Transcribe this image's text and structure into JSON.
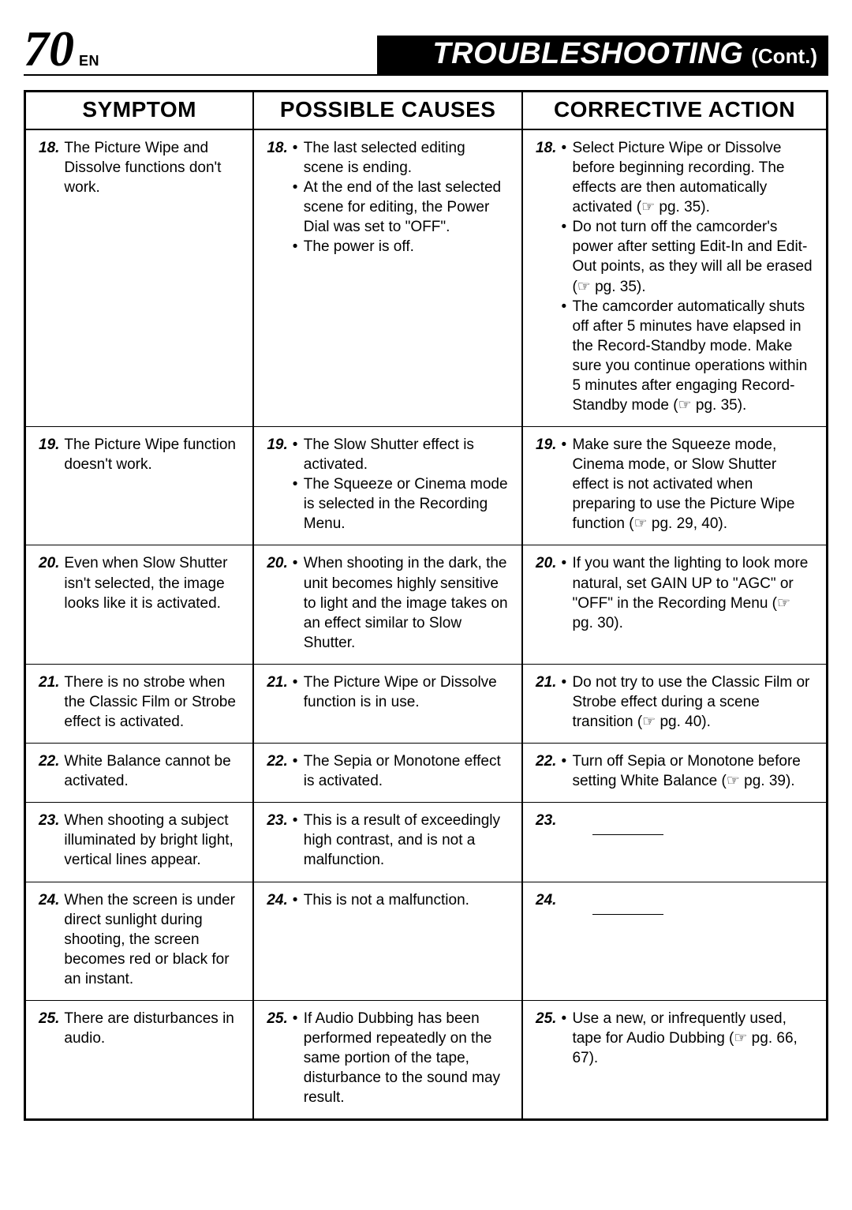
{
  "page": {
    "number": "70",
    "lang": "EN"
  },
  "header": {
    "title": "TROUBLESHOOTING",
    "cont": "(Cont.)"
  },
  "columns": {
    "symptom": "SYMPTOM",
    "causes": "POSSIBLE CAUSES",
    "action": "CORRECTIVE ACTION"
  },
  "rows": [
    {
      "n": "18.",
      "symptom": "The Picture Wipe and Dissolve functions don't work.",
      "causes": [
        "The last selected editing scene is ending.",
        "At the end of the last selected scene for editing, the Power Dial was set to \"OFF\".",
        "The power is off."
      ],
      "actions": [
        "Select Picture Wipe or Dissolve before beginning recording. The effects are then automatically activated (☞ pg. 35).",
        "Do not turn off the camcorder's power after setting Edit-In and Edit-Out points, as they will all be erased (☞ pg. 35).",
        "The camcorder automatically shuts off after 5 minutes have elapsed in the Record-Standby mode. Make sure you continue operations within 5 minutes after engaging Record-Standby mode (☞ pg. 35)."
      ]
    },
    {
      "n": "19.",
      "symptom": "The Picture Wipe function doesn't work.",
      "causes": [
        "The Slow Shutter effect is activated.",
        "The Squeeze or Cinema mode is selected in the Recording Menu."
      ],
      "actions": [
        "Make sure the Squeeze mode, Cinema mode, or Slow Shutter effect is not activated when preparing to use the Picture Wipe function (☞ pg. 29, 40)."
      ]
    },
    {
      "n": "20.",
      "symptom": "Even when Slow Shutter isn't selected, the image looks like it is activated.",
      "causes": [
        "When shooting in the dark, the unit becomes highly sensitive to light and the image takes on an effect similar to Slow Shutter."
      ],
      "actions": [
        "If you want the lighting to look more natural, set GAIN UP to \"AGC\" or \"OFF\" in the Recording Menu (☞ pg. 30)."
      ]
    },
    {
      "n": "21.",
      "symptom": "There is no strobe when the Classic Film or Strobe effect is activated.",
      "causes": [
        "The Picture Wipe or Dissolve function is in use."
      ],
      "actions": [
        "Do not try to use the Classic Film or Strobe effect during a scene transition (☞ pg. 40)."
      ]
    },
    {
      "n": "22.",
      "symptom": "White Balance cannot be activated.",
      "causes": [
        "The Sepia or Monotone effect is activated."
      ],
      "actions": [
        "Turn off Sepia or Monotone before setting White Balance (☞ pg. 39)."
      ]
    },
    {
      "n": "23.",
      "symptom": "When shooting a subject illuminated by bright light, vertical lines appear.",
      "causes": [
        "This is a result of exceedingly high contrast, and is not a malfunction."
      ],
      "actions": []
    },
    {
      "n": "24.",
      "symptom": "When the screen is under direct sunlight during shooting, the screen becomes red or black for an instant.",
      "causes": [
        "This is not a malfunction."
      ],
      "actions": []
    },
    {
      "n": "25.",
      "symptom": "There are disturbances in audio.",
      "causes": [
        "If Audio Dubbing has been performed repeatedly on the same portion of the tape, disturbance to the sound may result."
      ],
      "actions": [
        "Use a new, or infrequently used, tape for Audio Dubbing (☞ pg. 66, 67)."
      ]
    }
  ]
}
